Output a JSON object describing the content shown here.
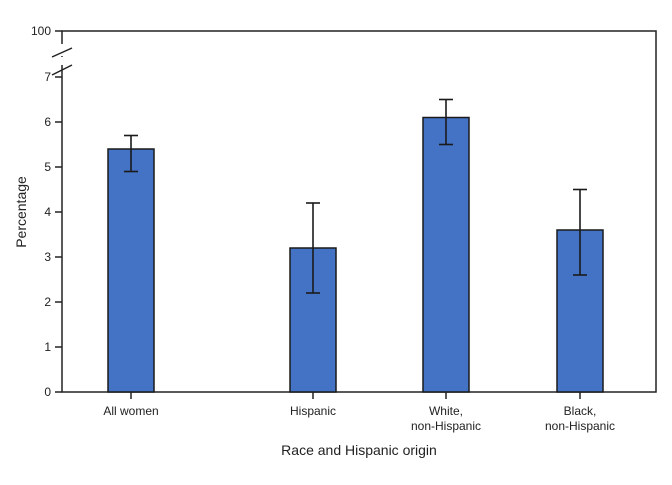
{
  "chart_data": {
    "type": "bar",
    "title": "",
    "xlabel": "Race and Hispanic origin",
    "ylabel": "Percentage",
    "categories": [
      [
        "All women"
      ],
      [
        "Hispanic"
      ],
      [
        "White,",
        "non-Hispanic"
      ],
      [
        "Black,",
        "non-Hispanic"
      ]
    ],
    "values": [
      5.4,
      3.2,
      6.1,
      3.6
    ],
    "error_low": [
      4.9,
      2.2,
      5.5,
      2.6
    ],
    "error_high": [
      5.7,
      4.2,
      6.5,
      4.5
    ],
    "ylim": [
      0,
      7
    ],
    "yticks": [
      "0",
      "1",
      "2",
      "3",
      "4",
      "5",
      "6",
      "7"
    ],
    "ytick_top_broken": "100",
    "axis_break": true,
    "grid": false,
    "colors": {
      "bar": "#4472c4",
      "bar_edge": "#1a1a1a",
      "error_bar": "#1a1a1a"
    }
  }
}
